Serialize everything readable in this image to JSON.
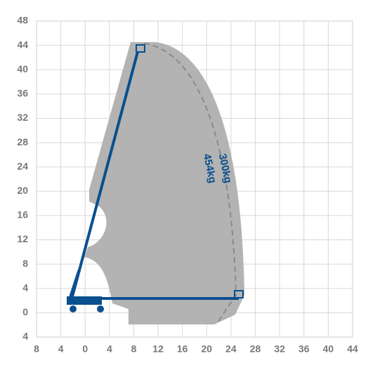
{
  "chart_data": {
    "type": "reach",
    "xlim": [
      -8,
      44
    ],
    "ylim": [
      -4,
      48
    ],
    "xticks": [
      {
        "value": -8,
        "label": "8"
      },
      {
        "value": -4,
        "label": "4"
      },
      0,
      4,
      8,
      12,
      16,
      20,
      24,
      28,
      32,
      36,
      40,
      44
    ],
    "yticks": [
      {
        "value": -4,
        "label": "4"
      },
      0,
      4,
      8,
      12,
      16,
      20,
      24,
      28,
      32,
      36,
      40,
      44,
      48
    ],
    "grid": true,
    "annotations": [
      "300kg",
      "454kg"
    ]
  }
}
